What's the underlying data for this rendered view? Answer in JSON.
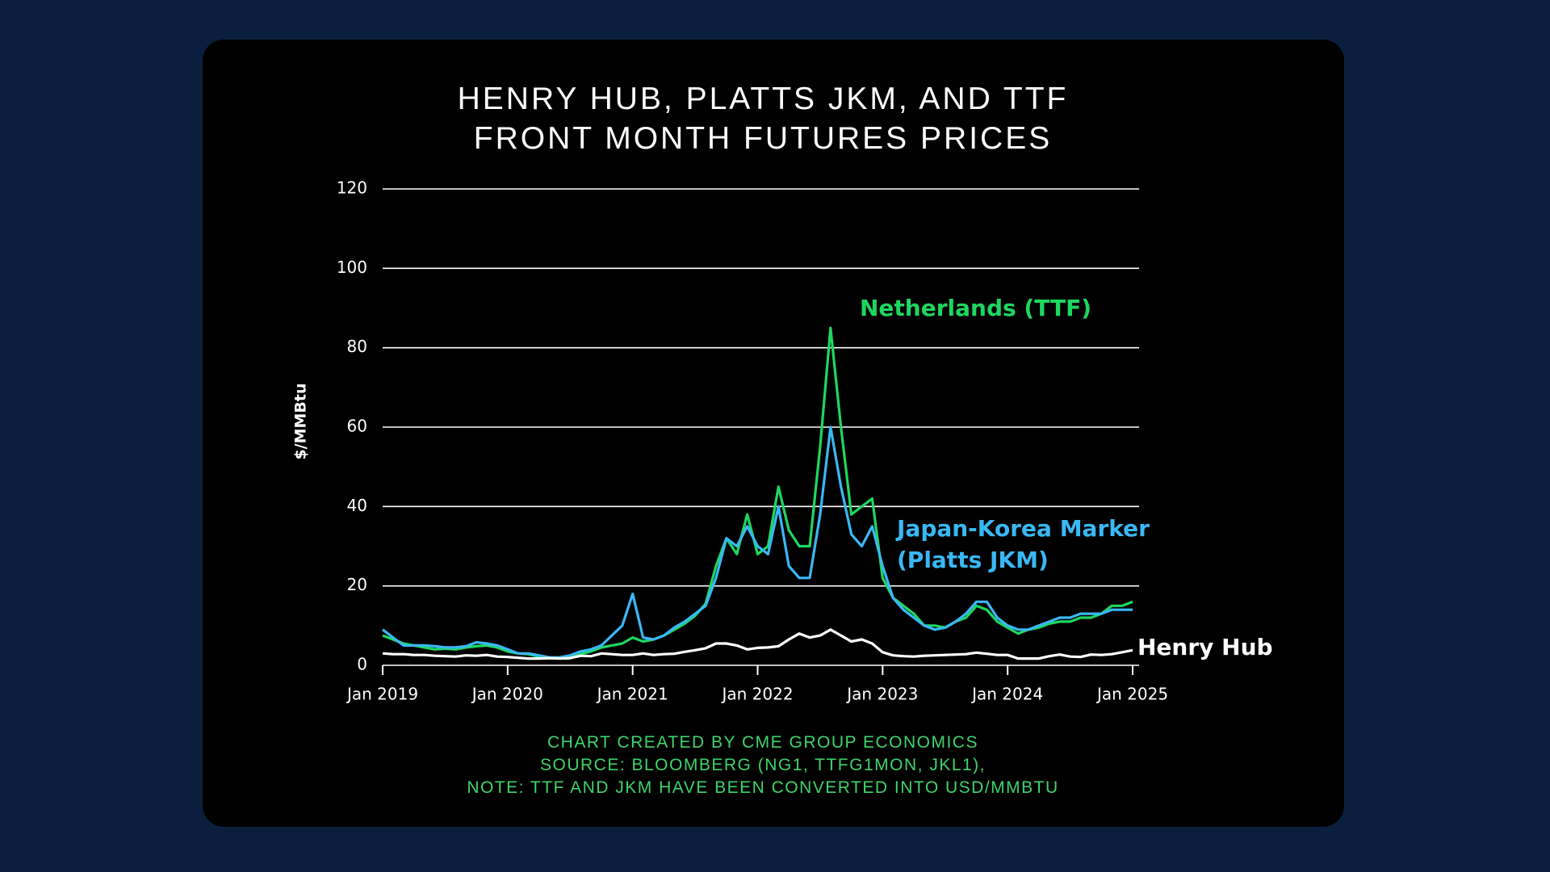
{
  "chart_data": {
    "type": "line",
    "title": "HENRY HUB, PLATTS JKM, AND TTF FRONT MONTH FUTURES PRICES",
    "y_label": "$/MMBtu",
    "notes": [
      "CHART CREATED BY CME GROUP ECONOMICS",
      "SOURCE: BLOOMBERG (NG1, TTFG1MON, JKL1),",
      "NOTE: TTF AND JKM HAVE BEEN CONVERTED INTO USD/MMBTU"
    ],
    "x": [
      "2019-01",
      "2019-02",
      "2019-03",
      "2019-04",
      "2019-05",
      "2019-06",
      "2019-07",
      "2019-08",
      "2019-09",
      "2019-10",
      "2019-11",
      "2019-12",
      "2020-01",
      "2020-02",
      "2020-03",
      "2020-04",
      "2020-05",
      "2020-06",
      "2020-07",
      "2020-08",
      "2020-09",
      "2020-10",
      "2020-11",
      "2020-12",
      "2021-01",
      "2021-02",
      "2021-03",
      "2021-04",
      "2021-05",
      "2021-06",
      "2021-07",
      "2021-08",
      "2021-09",
      "2021-10",
      "2021-11",
      "2021-12",
      "2022-01",
      "2022-02",
      "2022-03",
      "2022-04",
      "2022-05",
      "2022-06",
      "2022-07",
      "2022-08",
      "2022-09",
      "2022-10",
      "2022-11",
      "2022-12",
      "2023-01",
      "2023-02",
      "2023-03",
      "2023-04",
      "2023-05",
      "2023-06",
      "2023-07",
      "2023-08",
      "2023-09",
      "2023-10",
      "2023-11",
      "2023-12",
      "2024-01",
      "2024-02",
      "2024-03",
      "2024-04",
      "2024-05",
      "2024-06",
      "2024-07",
      "2024-08",
      "2024-09",
      "2024-10",
      "2024-11",
      "2024-12",
      "2025-01"
    ],
    "series": [
      {
        "name": "Netherlands (TTF)",
        "color": "#1ed760",
        "values": [
          7.5,
          6.5,
          5.5,
          5.0,
          4.5,
          4.0,
          4.2,
          4.0,
          4.5,
          4.8,
          5.0,
          4.5,
          3.5,
          3.0,
          2.8,
          2.2,
          1.8,
          1.8,
          1.8,
          2.8,
          3.5,
          4.5,
          5.0,
          5.5,
          7.0,
          6.0,
          6.5,
          7.5,
          9.0,
          10.5,
          12.5,
          15.5,
          25,
          32,
          28,
          38,
          28,
          30,
          45,
          34,
          30,
          30,
          55,
          85,
          60,
          38,
          40,
          42,
          22,
          17,
          15,
          13,
          10,
          10,
          9.5,
          11,
          12,
          15,
          14,
          11,
          9.5,
          8.0,
          9.0,
          9.5,
          10.5,
          11,
          11,
          12,
          12,
          13,
          15,
          15,
          16
        ]
      },
      {
        "name": "Japan-Korea Marker (Platts JKM)",
        "color": "#3ab8f5",
        "values": [
          9.0,
          7.0,
          5.0,
          5.0,
          5.0,
          4.8,
          4.5,
          4.5,
          4.8,
          5.8,
          5.5,
          5.0,
          4.0,
          3.0,
          3.0,
          2.5,
          2.0,
          2.0,
          2.5,
          3.5,
          4.0,
          5.0,
          7.5,
          10,
          18,
          7,
          6.5,
          7.5,
          9.5,
          11,
          13,
          15,
          22,
          32,
          30,
          35,
          30,
          28,
          40,
          25,
          22,
          22,
          38,
          60,
          45,
          33,
          30,
          35,
          25,
          17,
          14,
          12,
          10,
          9,
          9.5,
          11,
          13,
          16,
          16,
          12,
          10,
          9,
          9,
          10,
          11,
          12,
          12,
          13,
          13,
          13,
          14,
          14,
          14
        ]
      },
      {
        "name": "Henry Hub",
        "color": "#ffffff",
        "values": [
          3.0,
          2.8,
          2.8,
          2.6,
          2.6,
          2.4,
          2.3,
          2.2,
          2.5,
          2.4,
          2.6,
          2.2,
          2.1,
          1.9,
          1.7,
          1.7,
          1.8,
          1.7,
          1.8,
          2.4,
          2.3,
          3.0,
          2.8,
          2.6,
          2.6,
          3.0,
          2.6,
          2.8,
          2.9,
          3.4,
          3.8,
          4.3,
          5.5,
          5.5,
          5.0,
          4.0,
          4.4,
          4.5,
          4.8,
          6.5,
          8.0,
          7.0,
          7.5,
          9.0,
          7.5,
          6.0,
          6.5,
          5.5,
          3.3,
          2.5,
          2.3,
          2.2,
          2.4,
          2.5,
          2.6,
          2.7,
          2.8,
          3.2,
          2.9,
          2.6,
          2.6,
          1.7,
          1.7,
          1.7,
          2.3,
          2.7,
          2.2,
          2.1,
          2.7,
          2.6,
          2.8,
          3.3,
          3.8
        ]
      }
    ],
    "xlim": [
      "2019-01",
      "2025-01"
    ],
    "xticks": [
      {
        "value": "2019-01",
        "label": "Jan 2019"
      },
      {
        "value": "2020-01",
        "label": "Jan 2020"
      },
      {
        "value": "2021-01",
        "label": "Jan 2021"
      },
      {
        "value": "2022-01",
        "label": "Jan 2022"
      },
      {
        "value": "2023-01",
        "label": "Jan 2023"
      },
      {
        "value": "2024-01",
        "label": "Jan 2024"
      },
      {
        "value": "2025-01",
        "label": "Jan 2025"
      }
    ],
    "ylim": [
      0,
      120
    ],
    "yticks": [
      0,
      20,
      40,
      60,
      80,
      100,
      120
    ],
    "grid": true
  }
}
